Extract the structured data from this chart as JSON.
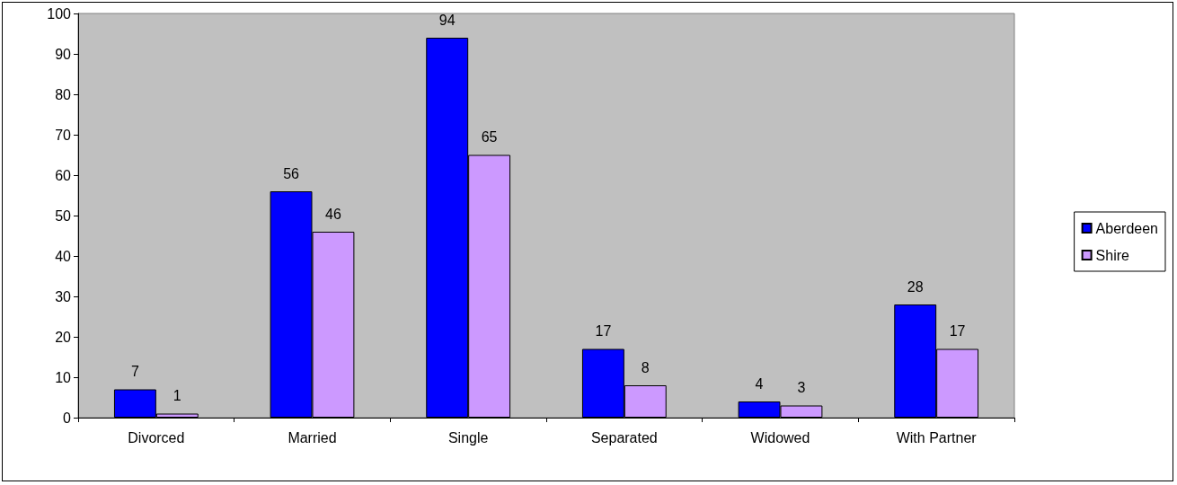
{
  "chart_data": {
    "type": "bar",
    "categories": [
      "Divorced",
      "Married",
      "Single",
      "Separated",
      "Widowed",
      "With Partner"
    ],
    "series": [
      {
        "name": "Aberdeen",
        "color": "#0000ff",
        "values": [
          7,
          56,
          94,
          17,
          4,
          28
        ]
      },
      {
        "name": "Shire",
        "color": "#cc99ff",
        "values": [
          1,
          46,
          65,
          8,
          3,
          17
        ]
      }
    ],
    "ylim": [
      0,
      100
    ],
    "yticks": [
      0,
      10,
      20,
      30,
      40,
      50,
      60,
      70,
      80,
      90,
      100
    ],
    "grid": false,
    "legend": "right",
    "data_labels": true
  }
}
